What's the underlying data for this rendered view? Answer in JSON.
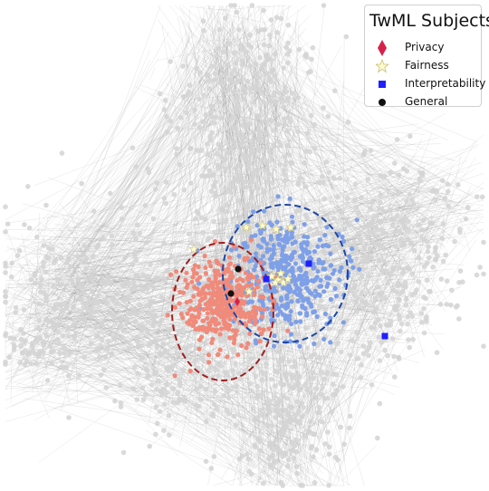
{
  "legend": {
    "title": "TwML Subjects",
    "items": [
      {
        "label": "Privacy",
        "marker": "diamond",
        "color": "#d6224a"
      },
      {
        "label": "Fairness",
        "marker": "star",
        "color": "#fffbd0"
      },
      {
        "label": "Interpretability",
        "marker": "square",
        "color": "#1f1fff"
      },
      {
        "label": "General",
        "marker": "circle",
        "color": "#111111"
      }
    ]
  },
  "colors": {
    "background_node": "#d3d3d3",
    "edge": "#9e9e9e",
    "privacy_cluster": "#f08a7a",
    "interpretability_cluster": "#7ea0e8",
    "privacy_ellipse": "#a11e1e",
    "interpretability_ellipse": "#1e47a6"
  }
}
